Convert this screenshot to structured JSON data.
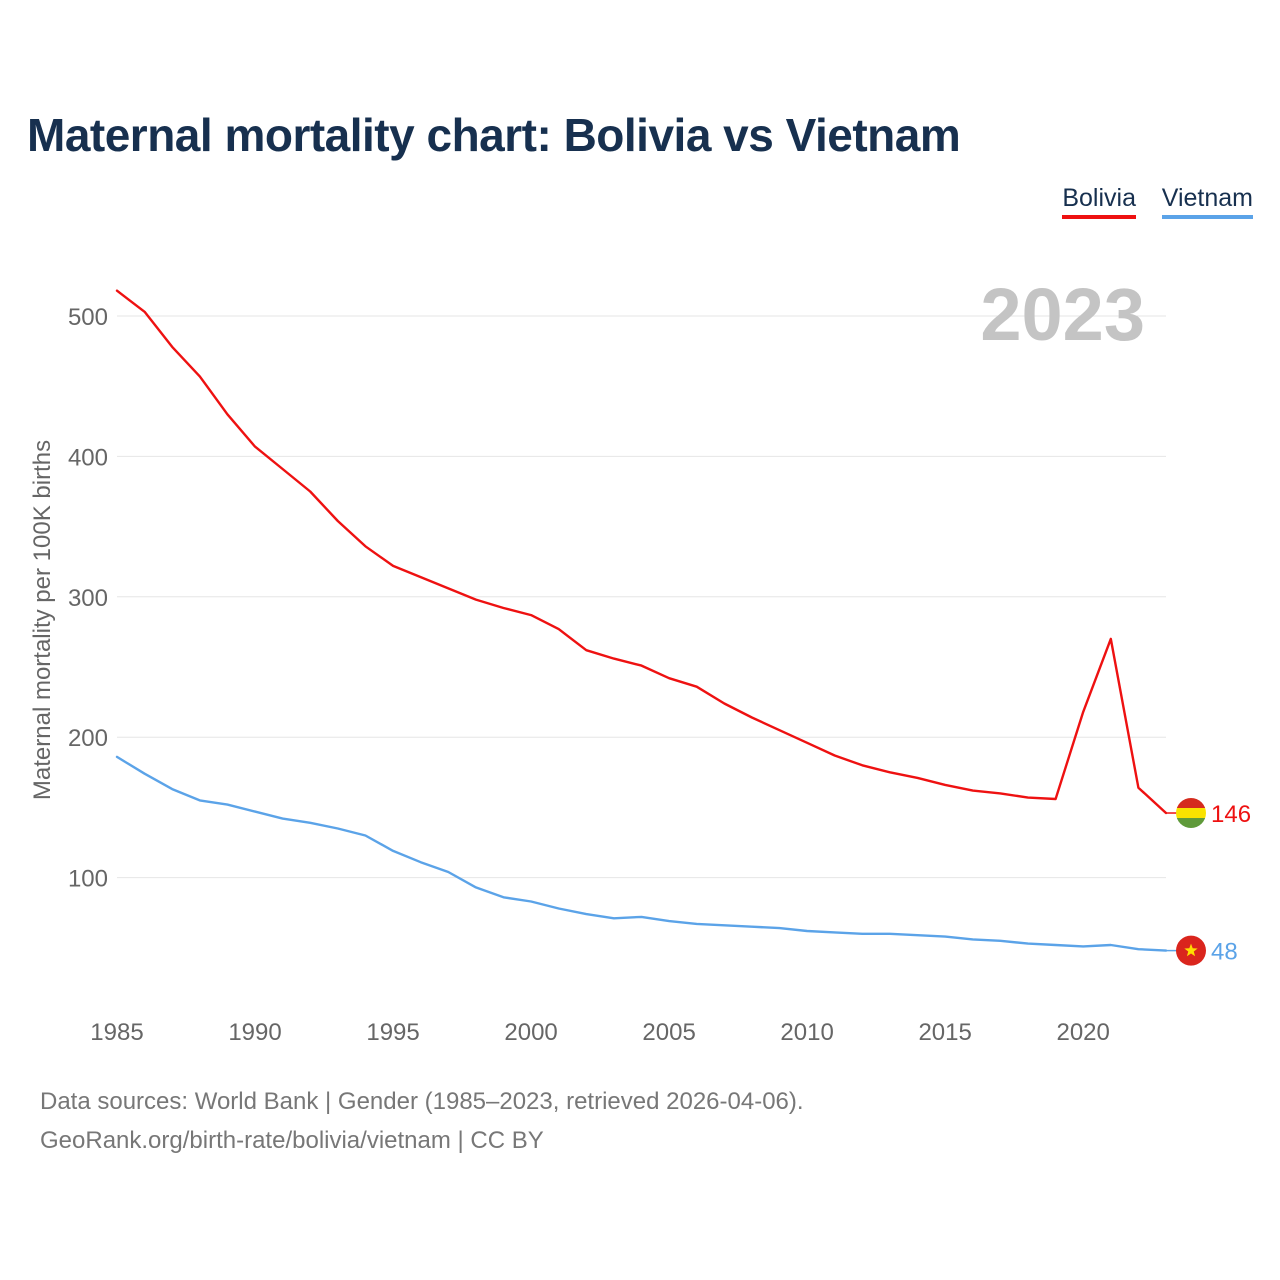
{
  "title": "Maternal mortality chart: Bolivia vs Vietnam",
  "legend": [
    {
      "label": "Bolivia",
      "color": "#ee1111"
    },
    {
      "label": "Vietnam",
      "color": "#5ba3e8"
    }
  ],
  "year_label": "2023",
  "footer": {
    "source": "Data sources: World Bank | Gender (1985–2023, retrieved 2026-04-06).",
    "credit": "GeoRank.org/birth-rate/bolivia/vietnam | CC BY"
  },
  "chart_data": {
    "type": "line",
    "title": "Maternal mortality chart: Bolivia vs Vietnam",
    "xlabel": "",
    "ylabel": "Maternal mortality per 100K births",
    "xlim": [
      1985,
      2023
    ],
    "ylim": [
      0,
      520
    ],
    "yticks": [
      100,
      200,
      300,
      400,
      500
    ],
    "xticks": [
      1985,
      1990,
      1995,
      2000,
      2005,
      2010,
      2015,
      2020
    ],
    "grid": true,
    "legend_position": "top-right",
    "x": [
      1985,
      1986,
      1987,
      1988,
      1989,
      1990,
      1991,
      1992,
      1993,
      1994,
      1995,
      1996,
      1997,
      1998,
      1999,
      2000,
      2001,
      2002,
      2003,
      2004,
      2005,
      2006,
      2007,
      2008,
      2009,
      2010,
      2011,
      2012,
      2013,
      2014,
      2015,
      2016,
      2017,
      2018,
      2019,
      2020,
      2021,
      2022,
      2023
    ],
    "series": [
      {
        "name": "Bolivia",
        "color": "#ee1111",
        "end_label": "146",
        "flag": "bolivia-flag",
        "values": [
          518,
          503,
          478,
          457,
          430,
          407,
          391,
          375,
          354,
          336,
          322,
          314,
          306,
          298,
          292,
          287,
          277,
          262,
          256,
          251,
          242,
          236,
          224,
          214,
          205,
          196,
          187,
          180,
          175,
          171,
          166,
          162,
          160,
          157,
          156,
          218,
          270,
          164,
          146
        ]
      },
      {
        "name": "Vietnam",
        "color": "#5ba3e8",
        "end_label": "48",
        "flag": "vietnam-flag",
        "values": [
          186,
          174,
          163,
          155,
          152,
          147,
          142,
          139,
          135,
          130,
          119,
          111,
          104,
          93,
          86,
          83,
          78,
          74,
          71,
          72,
          69,
          67,
          66,
          65,
          64,
          62,
          61,
          60,
          60,
          59,
          58,
          56,
          55,
          53,
          52,
          51,
          52,
          49,
          48
        ]
      }
    ]
  }
}
